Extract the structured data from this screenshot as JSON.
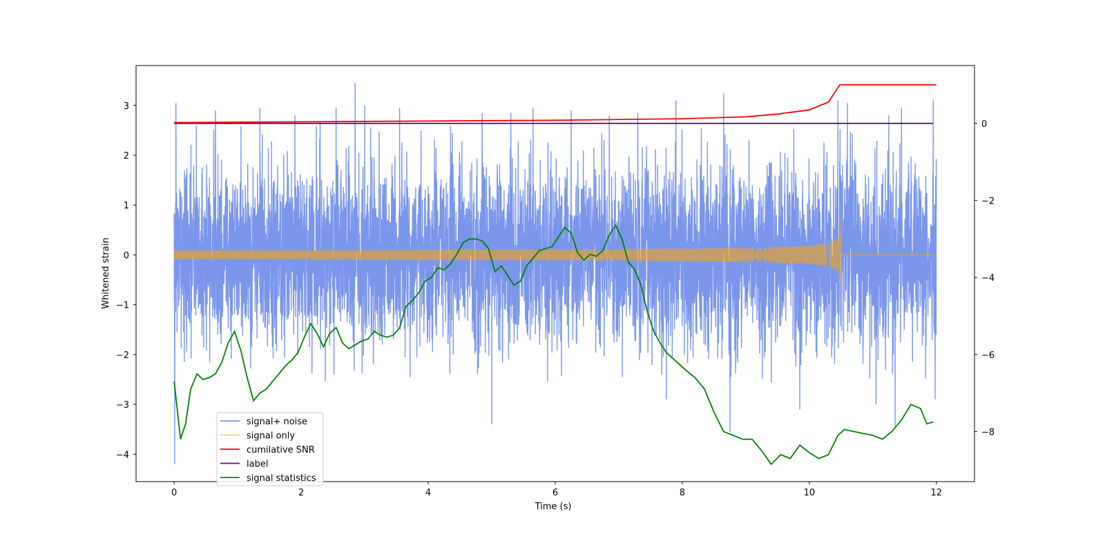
{
  "chart_data": {
    "type": "line",
    "title": "",
    "xlabel": "Time (s)",
    "ylabel": "Whitened strain",
    "xlim": [
      -0.6,
      12.6
    ],
    "ylim": [
      -4.55,
      3.8
    ],
    "y2lim": [
      -9.3,
      1.5
    ],
    "xticks": [
      0,
      2,
      4,
      6,
      8,
      10,
      12
    ],
    "xtick_labels": [
      "0",
      "2",
      "4",
      "6",
      "8",
      "10",
      "12"
    ],
    "yticks": [
      3,
      2,
      1,
      0,
      -1,
      -2,
      -3,
      -4
    ],
    "ytick_labels": [
      "3",
      "2",
      "1",
      "0",
      "−1",
      "−2",
      "−3",
      "−4"
    ],
    "y2ticks": [
      0,
      -2,
      -4,
      -6,
      -8
    ],
    "y2tick_labels": [
      "0",
      "−2",
      "−4",
      "−6",
      "−8"
    ],
    "grid": false,
    "legend_position": "lower-left",
    "series": [
      {
        "name": "signal+ noise",
        "axis": "left",
        "color": "#4169e1",
        "description": "dense whitened noise, approximately Gaussian with std ~0.9, spanning t=0 to 12 s",
        "spikes": [
          [
            0.01,
            -4.2
          ],
          [
            0.03,
            3.05
          ],
          [
            0.35,
            2.6
          ],
          [
            0.65,
            2.9
          ],
          [
            1.35,
            2.95
          ],
          [
            1.9,
            2.8
          ],
          [
            2.55,
            2.95
          ],
          [
            2.85,
            3.45
          ],
          [
            3.0,
            3.0
          ],
          [
            3.55,
            2.95
          ],
          [
            4.85,
            2.85
          ],
          [
            5.0,
            -3.4
          ],
          [
            5.3,
            2.85
          ],
          [
            5.65,
            2.95
          ],
          [
            6.25,
            2.9
          ],
          [
            6.85,
            2.8
          ],
          [
            7.3,
            2.85
          ],
          [
            7.75,
            -2.9
          ],
          [
            7.9,
            3.1
          ],
          [
            8.65,
            3.25
          ],
          [
            8.75,
            -3.55
          ],
          [
            9.85,
            -3.1
          ],
          [
            10.45,
            3.1
          ],
          [
            10.6,
            3.05
          ],
          [
            11.05,
            -3.0
          ],
          [
            11.25,
            2.8
          ],
          [
            11.35,
            -3.45
          ],
          [
            11.45,
            2.95
          ],
          [
            11.95,
            3.1
          ],
          [
            11.98,
            -2.9
          ]
        ]
      },
      {
        "name": "signal only",
        "axis": "left",
        "color": "#ffa500",
        "description": "chirp waveform, flat near 0, amplitude growing to ~1.05 until merger at ~10.5 s, then zero",
        "merger_time": 10.5,
        "peak_amplitude": 1.05
      },
      {
        "name": "cumilative SNR",
        "axis": "right",
        "color": "#ff0000",
        "points": [
          [
            0,
            0.02
          ],
          [
            2,
            0.04
          ],
          [
            4,
            0.06
          ],
          [
            6,
            0.08
          ],
          [
            8,
            0.12
          ],
          [
            9,
            0.17
          ],
          [
            9.5,
            0.24
          ],
          [
            10,
            0.35
          ],
          [
            10.3,
            0.55
          ],
          [
            10.42,
            0.85
          ],
          [
            10.48,
            1.0
          ],
          [
            10.5,
            1.0
          ],
          [
            12,
            1.0
          ]
        ]
      },
      {
        "name": "label",
        "axis": "right",
        "color": "#6a0d83",
        "points": [
          [
            0,
            0.0
          ],
          [
            11.95,
            0.0
          ]
        ]
      },
      {
        "name": "signal statistics",
        "axis": "right",
        "color": "#008000",
        "points": [
          [
            0,
            -6.7
          ],
          [
            0.1,
            -8.2
          ],
          [
            0.18,
            -7.8
          ],
          [
            0.26,
            -6.9
          ],
          [
            0.36,
            -6.5
          ],
          [
            0.45,
            -6.65
          ],
          [
            0.55,
            -6.6
          ],
          [
            0.65,
            -6.5
          ],
          [
            0.75,
            -6.2
          ],
          [
            0.85,
            -5.7
          ],
          [
            0.95,
            -5.4
          ],
          [
            1.05,
            -5.9
          ],
          [
            1.15,
            -6.6
          ],
          [
            1.25,
            -7.2
          ],
          [
            1.35,
            -7.0
          ],
          [
            1.45,
            -6.9
          ],
          [
            1.55,
            -6.7
          ],
          [
            1.65,
            -6.5
          ],
          [
            1.75,
            -6.3
          ],
          [
            1.85,
            -6.15
          ],
          [
            1.95,
            -5.95
          ],
          [
            2.05,
            -5.55
          ],
          [
            2.15,
            -5.2
          ],
          [
            2.25,
            -5.45
          ],
          [
            2.35,
            -5.8
          ],
          [
            2.45,
            -5.45
          ],
          [
            2.55,
            -5.3
          ],
          [
            2.65,
            -5.7
          ],
          [
            2.75,
            -5.85
          ],
          [
            2.85,
            -5.75
          ],
          [
            2.95,
            -5.65
          ],
          [
            3.05,
            -5.6
          ],
          [
            3.15,
            -5.4
          ],
          [
            3.25,
            -5.5
          ],
          [
            3.35,
            -5.55
          ],
          [
            3.45,
            -5.5
          ],
          [
            3.55,
            -5.3
          ],
          [
            3.65,
            -4.75
          ],
          [
            3.75,
            -4.6
          ],
          [
            3.85,
            -4.4
          ],
          [
            3.95,
            -4.1
          ],
          [
            4.05,
            -4.0
          ],
          [
            4.15,
            -3.75
          ],
          [
            4.25,
            -3.8
          ],
          [
            4.35,
            -3.65
          ],
          [
            4.45,
            -3.4
          ],
          [
            4.55,
            -3.1
          ],
          [
            4.65,
            -3.0
          ],
          [
            4.75,
            -3.0
          ],
          [
            4.85,
            -3.05
          ],
          [
            4.95,
            -3.25
          ],
          [
            5.05,
            -3.85
          ],
          [
            5.15,
            -3.7
          ],
          [
            5.25,
            -3.95
          ],
          [
            5.35,
            -4.2
          ],
          [
            5.45,
            -4.1
          ],
          [
            5.55,
            -3.7
          ],
          [
            5.65,
            -3.5
          ],
          [
            5.75,
            -3.3
          ],
          [
            5.85,
            -3.25
          ],
          [
            5.95,
            -3.2
          ],
          [
            6.05,
            -2.95
          ],
          [
            6.15,
            -2.7
          ],
          [
            6.25,
            -2.85
          ],
          [
            6.35,
            -3.35
          ],
          [
            6.45,
            -3.55
          ],
          [
            6.55,
            -3.4
          ],
          [
            6.65,
            -3.45
          ],
          [
            6.75,
            -3.3
          ],
          [
            6.85,
            -2.9
          ],
          [
            6.95,
            -2.65
          ],
          [
            7.05,
            -3.0
          ],
          [
            7.15,
            -3.6
          ],
          [
            7.25,
            -3.8
          ],
          [
            7.35,
            -4.2
          ],
          [
            7.45,
            -4.9
          ],
          [
            7.55,
            -5.4
          ],
          [
            7.65,
            -5.7
          ],
          [
            7.75,
            -5.95
          ],
          [
            7.85,
            -6.1
          ],
          [
            7.95,
            -6.25
          ],
          [
            8.05,
            -6.4
          ],
          [
            8.2,
            -6.6
          ],
          [
            8.35,
            -6.9
          ],
          [
            8.5,
            -7.5
          ],
          [
            8.65,
            -8.0
          ],
          [
            8.8,
            -8.1
          ],
          [
            8.95,
            -8.2
          ],
          [
            9.1,
            -8.2
          ],
          [
            9.25,
            -8.5
          ],
          [
            9.4,
            -8.85
          ],
          [
            9.55,
            -8.6
          ],
          [
            9.7,
            -8.7
          ],
          [
            9.85,
            -8.35
          ],
          [
            10.0,
            -8.55
          ],
          [
            10.15,
            -8.7
          ],
          [
            10.3,
            -8.6
          ],
          [
            10.45,
            -8.1
          ],
          [
            10.55,
            -7.95
          ],
          [
            10.7,
            -8.0
          ],
          [
            10.85,
            -8.05
          ],
          [
            11.0,
            -8.1
          ],
          [
            11.15,
            -8.2
          ],
          [
            11.3,
            -8.0
          ],
          [
            11.45,
            -7.7
          ],
          [
            11.6,
            -7.3
          ],
          [
            11.75,
            -7.4
          ],
          [
            11.85,
            -7.8
          ],
          [
            11.95,
            -7.75
          ]
        ]
      }
    ]
  }
}
